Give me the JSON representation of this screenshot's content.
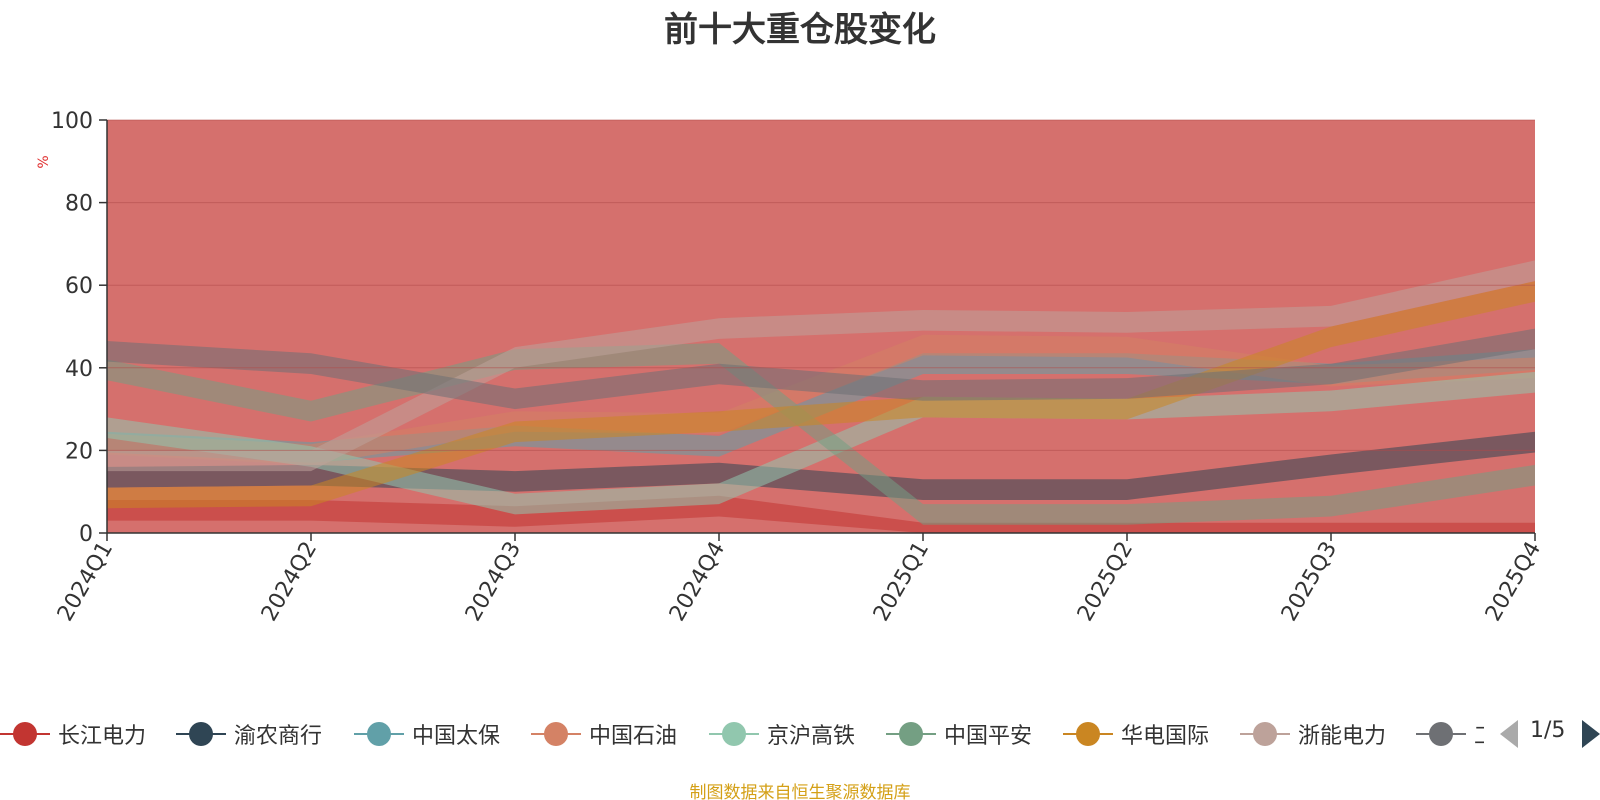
{
  "title": "前十大重仓股变化",
  "footer": "制图数据来自恒生聚源数据库",
  "pager": {
    "text": "1/5"
  },
  "colors": {
    "background_area": "#d5706d",
    "axis": "#333333",
    "footer": "#d4a017"
  },
  "chart_data": {
    "type": "area",
    "title": "前十大重仓股变化",
    "ylabel": "%",
    "xlabel": "",
    "ylim": [
      0,
      100
    ],
    "yticks": [
      0,
      20,
      40,
      60,
      80,
      100
    ],
    "grid": true,
    "legend_position": "bottom",
    "categories": [
      "2024Q1",
      "2024Q2",
      "2024Q3",
      "2024Q4",
      "2025Q1",
      "2025Q2",
      "2025Q3",
      "2025Q4"
    ],
    "series": [
      {
        "name": "长江电力",
        "color": "#c23531",
        "values": [
          5.5,
          5.5,
          4,
          6.5,
          0,
          0,
          0,
          0
        ]
      },
      {
        "name": "渝农商行",
        "color": "#2f4554",
        "values": [
          13.5,
          14,
          12.5,
          14.5,
          10.5,
          10.5,
          16.5,
          22
        ]
      },
      {
        "name": "中国太保",
        "color": "#61a0a8",
        "values": [
          22,
          19.5,
          23.5,
          21,
          41,
          41,
          38.5,
          42
        ]
      },
      {
        "name": "中国石油",
        "color": "#d48265",
        "values": [
          21.5,
          19,
          27,
          26.5,
          45.5,
          45,
          38,
          40
        ]
      },
      {
        "name": "京沪高铁",
        "color": "#91c7ae",
        "values": [
          25.5,
          18.5,
          7,
          9.5,
          30.5,
          30,
          32,
          36.5
        ]
      },
      {
        "name": "中国平安",
        "color": "#749f83",
        "values": [
          39.5,
          29.5,
          42,
          43.5,
          4.5,
          4.5,
          6.5,
          14
        ]
      },
      {
        "name": "华电国际",
        "color": "#ca8622",
        "values": [
          8.5,
          9,
          24.5,
          27,
          30.5,
          30,
          47.5,
          58.5
        ]
      },
      {
        "name": "浙能电力",
        "color": "#bda29a",
        "values": [
          17.5,
          17.5,
          42.5,
          49.5,
          51.5,
          51,
          52.5,
          63.5
        ]
      },
      {
        "name": "工商银行",
        "color": "#6e7074",
        "values": [
          44,
          41,
          32.5,
          38.5,
          34.5,
          35,
          38.5,
          47
        ]
      }
    ]
  },
  "legend": {
    "items": [
      {
        "label": "长江电力",
        "color": "#c23531"
      },
      {
        "label": "渝农商行",
        "color": "#2f4554"
      },
      {
        "label": "中国太保",
        "color": "#61a0a8"
      },
      {
        "label": "中国石油",
        "color": "#d48265"
      },
      {
        "label": "京沪高铁",
        "color": "#91c7ae"
      },
      {
        "label": "中国平安",
        "color": "#749f83"
      },
      {
        "label": "华电国际",
        "color": "#ca8622"
      },
      {
        "label": "浙能电力",
        "color": "#bda29a"
      },
      {
        "label": "工",
        "color": "#6e7074"
      }
    ]
  }
}
